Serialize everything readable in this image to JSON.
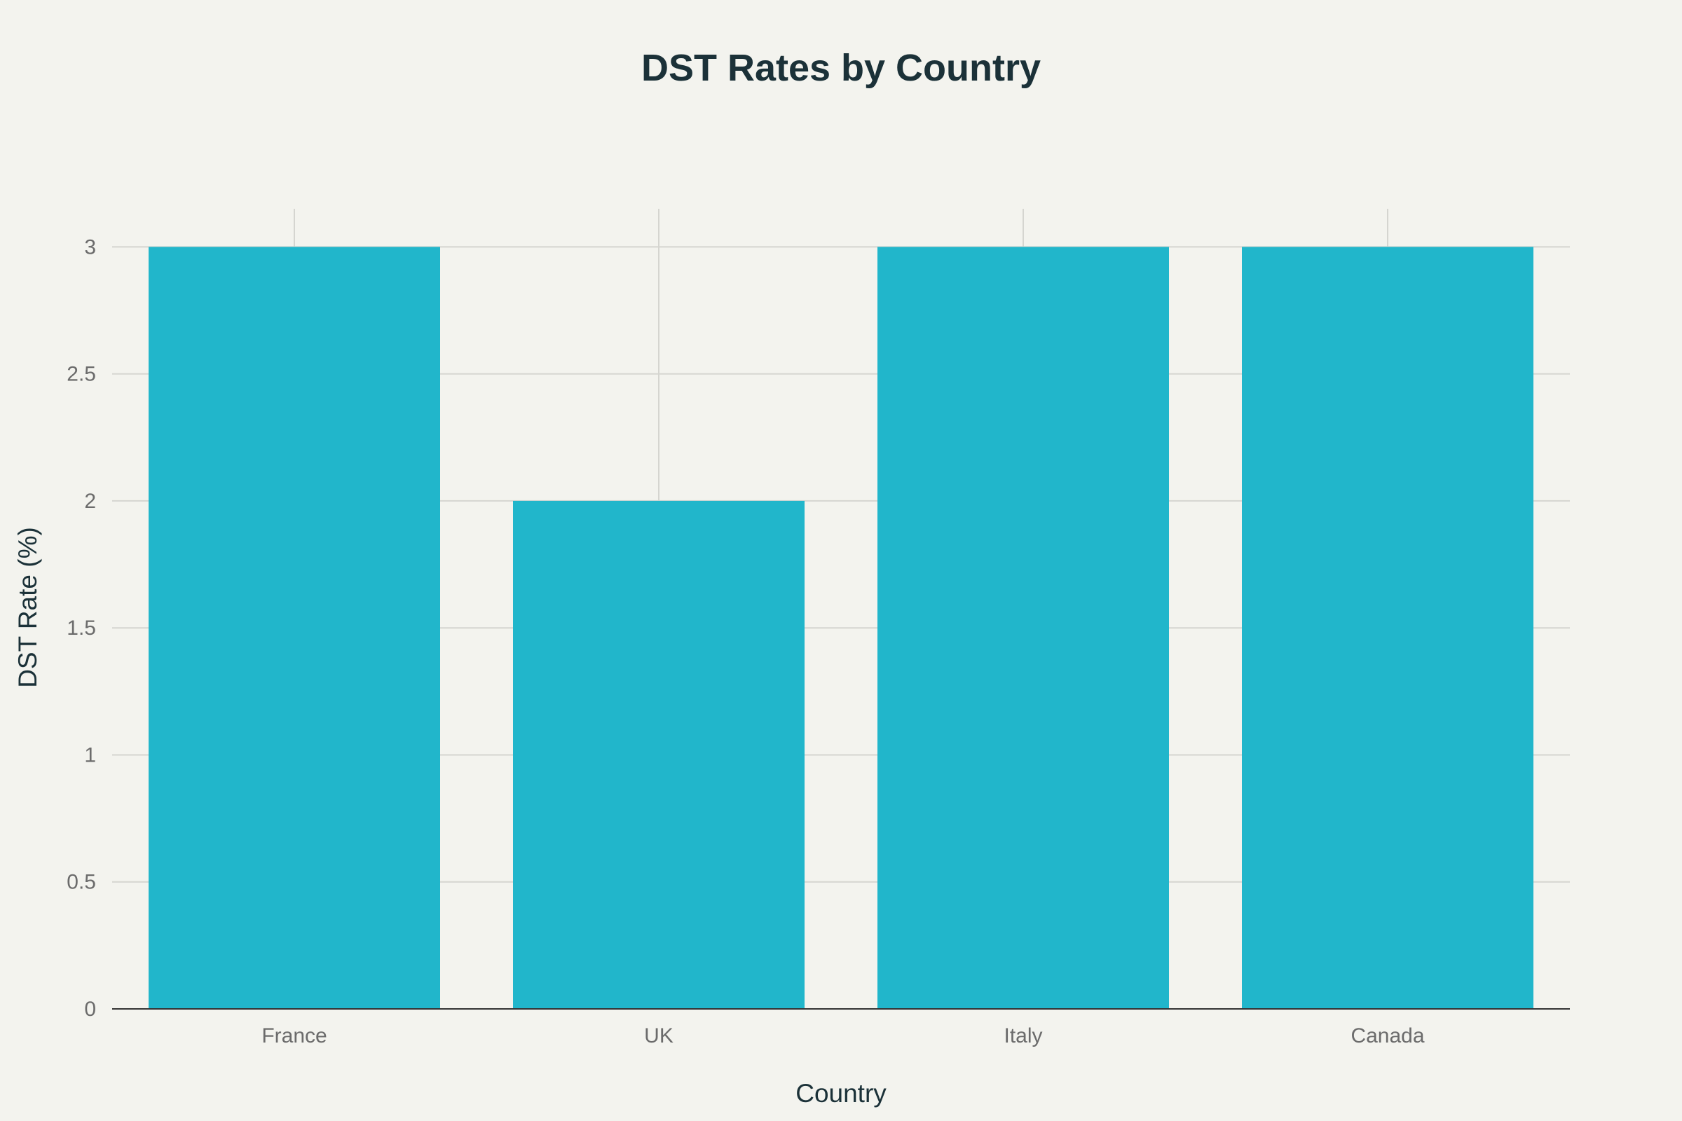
{
  "chart_data": {
    "type": "bar",
    "title": "DST Rates by Country",
    "xlabel": "Country",
    "ylabel": "DST Rate (%)",
    "categories": [
      "France",
      "UK",
      "Italy",
      "Canada"
    ],
    "values": [
      3,
      2,
      3,
      3
    ],
    "ylim": [
      0,
      3.15
    ],
    "yticks": [
      0,
      0.5,
      1,
      1.5,
      2,
      2.5,
      3
    ],
    "ytick_labels": [
      "0",
      "0.5",
      "1",
      "1.5",
      "2",
      "2.5",
      "3"
    ],
    "grid": true,
    "legend": false,
    "colors": {
      "bar": "#21b6cb",
      "background": "#f3f3ee",
      "grid": "#d5d5d0",
      "title": "#1b3138",
      "tick": "#6b6b6b"
    }
  }
}
